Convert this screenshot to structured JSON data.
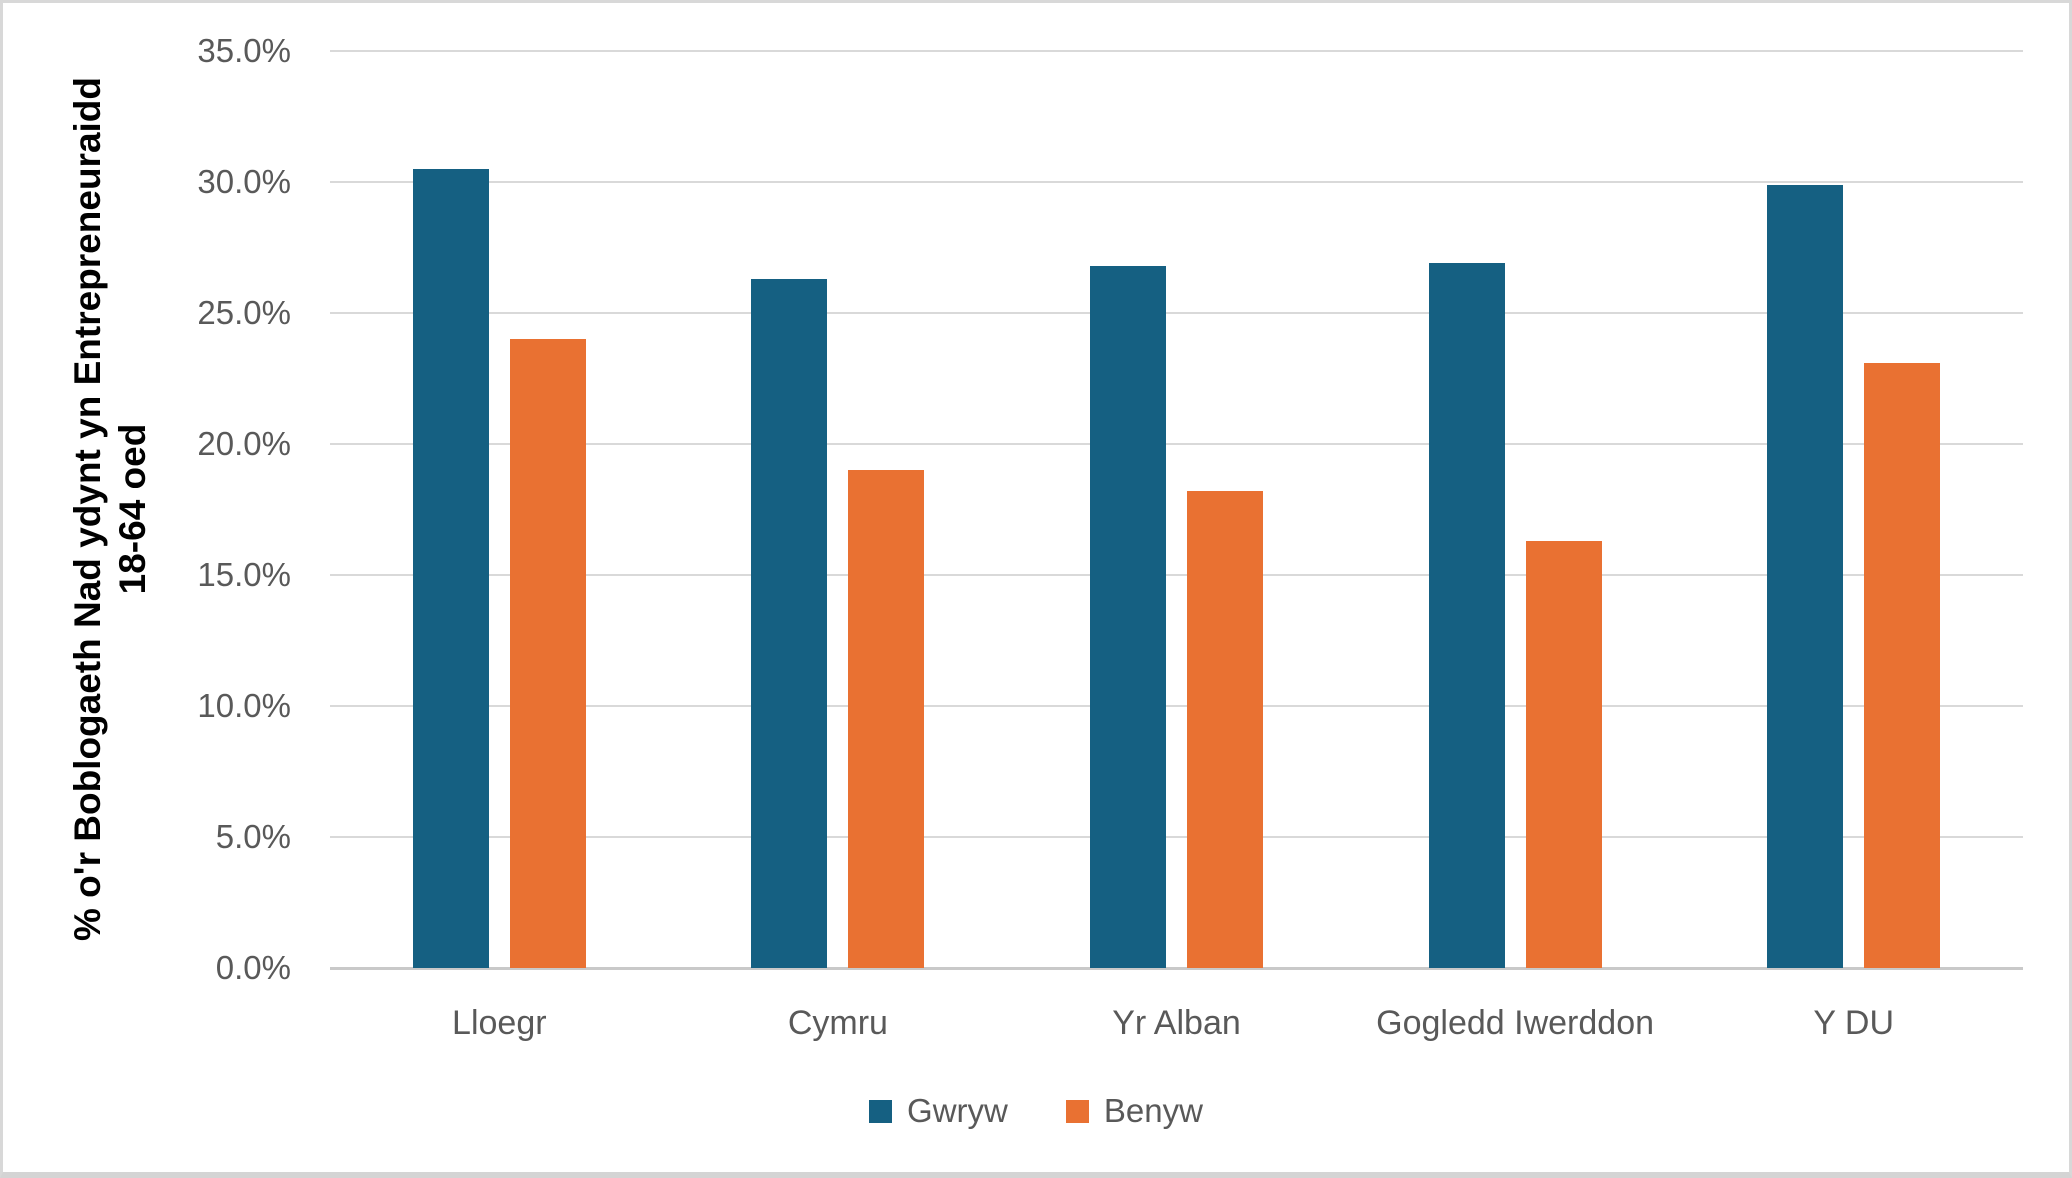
{
  "chart_data": {
    "type": "bar",
    "title": "",
    "categories": [
      "Lloegr",
      "Cymru",
      "Yr Alban",
      "Gogledd Iwerddon",
      "Y DU"
    ],
    "series": [
      {
        "name": "Gwryw",
        "color": "#156082",
        "values": [
          30.5,
          26.3,
          26.8,
          26.9,
          29.9
        ]
      },
      {
        "name": "Benyw",
        "color": "#E97132",
        "values": [
          24.0,
          19.0,
          18.2,
          16.3,
          23.1
        ]
      }
    ],
    "ylabel_line1": "% o'r Boblogaeth Nad ydynt yn Entrepreneuraidd",
    "ylabel_line2": "18-64 oed",
    "xlabel": "",
    "ylim": [
      0,
      35
    ],
    "ytick_step": 5,
    "ytick_suffix": "%",
    "ytick_decimals": 1,
    "grid": true,
    "legend_position": "bottom",
    "colors": {
      "gridline": "#d9d9d9",
      "axis_line": "#c9c9c9",
      "tick_text": "#595959",
      "title_text": "#000000"
    }
  }
}
